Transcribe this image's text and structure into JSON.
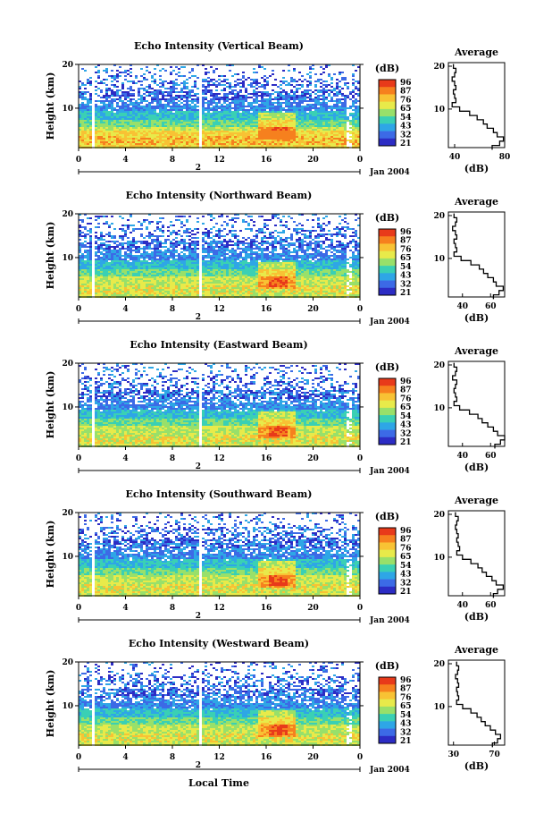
{
  "figure": {
    "bottom_xlabel": "Local Time",
    "colorbar_unit": "(dB)",
    "colorbar_ticks": [
      "96",
      "87",
      "76",
      "65",
      "54",
      "43",
      "32",
      "21"
    ],
    "colorbar_colors": [
      "#e83a1a",
      "#f6801e",
      "#f8c234",
      "#e8ea4a",
      "#98e06a",
      "#3ad0b4",
      "#2ea6e6",
      "#3c6ae6",
      "#2c2cc4"
    ],
    "height_label": "Height (km)",
    "height_ticks": [
      "20",
      "10"
    ],
    "time_ticks": [
      "0",
      "4",
      "8",
      "12",
      "16",
      "20",
      "0"
    ],
    "day_marker": "2",
    "date_label": "Jan 2004",
    "avg_title": "Average",
    "avg_xlabel": "(dB)"
  },
  "chart_data": [
    {
      "type": "heatmap",
      "title": "Echo Intensity (Vertical Beam)",
      "ylabel": "Height (km)",
      "ylim": [
        1,
        20
      ],
      "xlim": [
        0,
        24
      ],
      "time_ticks": [
        "0",
        "4",
        "8",
        "12",
        "16",
        "20",
        "0"
      ],
      "colorbar": {
        "unit": "(dB)",
        "ticks": [
          96,
          87,
          76,
          65,
          54,
          43,
          32,
          21
        ]
      },
      "average_profile": {
        "title": "Average",
        "xlabel": "(dB)",
        "xlim": [
          35,
          80
        ],
        "xticks": [
          "40",
          "80"
        ],
        "yticks": [
          "20",
          "10"
        ],
        "height": [
          1,
          2,
          3,
          4,
          5,
          6,
          7,
          8,
          9,
          10,
          11,
          12,
          13,
          14,
          15,
          16,
          17,
          18,
          19,
          20
        ],
        "db": [
          70,
          76,
          79,
          74,
          71,
          66,
          63,
          58,
          52,
          44,
          38,
          41,
          40,
          39,
          41,
          40,
          38,
          40,
          41,
          39
        ]
      }
    },
    {
      "type": "heatmap",
      "title": "Echo Intensity (Northward Beam)",
      "ylabel": "Height (km)",
      "ylim": [
        1,
        20
      ],
      "xlim": [
        0,
        24
      ],
      "time_ticks": [
        "0",
        "4",
        "8",
        "12",
        "16",
        "20",
        "0"
      ],
      "colorbar": {
        "unit": "(dB)",
        "ticks": [
          96,
          87,
          76,
          65,
          54,
          43,
          32,
          21
        ]
      },
      "average_profile": {
        "title": "Average",
        "xlabel": "(dB)",
        "xlim": [
          30,
          70
        ],
        "xticks": [
          "40",
          "60"
        ],
        "yticks": [
          "20",
          "10"
        ],
        "height": [
          1,
          2,
          3,
          4,
          5,
          6,
          7,
          8,
          9,
          10,
          11,
          12,
          13,
          14,
          15,
          16,
          17,
          18,
          19,
          20
        ],
        "db": [
          62,
          66,
          69,
          64,
          62,
          58,
          55,
          52,
          46,
          39,
          34,
          36,
          35,
          34,
          36,
          35,
          33,
          35,
          36,
          34
        ]
      }
    },
    {
      "type": "heatmap",
      "title": "Echo Intensity (Eastward Beam)",
      "ylabel": "Height (km)",
      "ylim": [
        1,
        20
      ],
      "xlim": [
        0,
        24
      ],
      "time_ticks": [
        "0",
        "4",
        "8",
        "12",
        "16",
        "20",
        "0"
      ],
      "colorbar": {
        "unit": "(dB)",
        "ticks": [
          96,
          87,
          76,
          65,
          54,
          43,
          32,
          21
        ]
      },
      "average_profile": {
        "title": "Average",
        "xlabel": "(dB)",
        "xlim": [
          30,
          70
        ],
        "xticks": [
          "40",
          "60"
        ],
        "yticks": [
          "20",
          "10"
        ],
        "height": [
          1,
          2,
          3,
          4,
          5,
          6,
          7,
          8,
          9,
          10,
          11,
          12,
          13,
          14,
          15,
          16,
          17,
          18,
          19,
          20
        ],
        "db": [
          63,
          67,
          70,
          65,
          62,
          58,
          54,
          51,
          45,
          38,
          34,
          36,
          35,
          34,
          35,
          36,
          33,
          35,
          36,
          34
        ]
      }
    },
    {
      "type": "heatmap",
      "title": "Echo Intensity (Southward Beam)",
      "ylabel": "Height (km)",
      "ylim": [
        1,
        20
      ],
      "xlim": [
        0,
        24
      ],
      "time_ticks": [
        "0",
        "4",
        "8",
        "12",
        "16",
        "20",
        "0"
      ],
      "colorbar": {
        "unit": "(dB)",
        "ticks": [
          96,
          87,
          76,
          65,
          54,
          43,
          32,
          21
        ]
      },
      "average_profile": {
        "title": "Average",
        "xlabel": "(dB)",
        "xlim": [
          30,
          70
        ],
        "xticks": [
          "40",
          "60"
        ],
        "yticks": [
          "20",
          "10"
        ],
        "height": [
          1,
          2,
          3,
          4,
          5,
          6,
          7,
          8,
          9,
          10,
          11,
          12,
          13,
          14,
          15,
          16,
          17,
          18,
          19,
          20
        ],
        "db": [
          62,
          65,
          69,
          64,
          61,
          57,
          54,
          51,
          46,
          40,
          36,
          38,
          37,
          36,
          37,
          36,
          35,
          36,
          37,
          35
        ]
      }
    },
    {
      "type": "heatmap",
      "title": "Echo Intensity (Westward Beam)",
      "ylabel": "Height (km)",
      "ylim": [
        1,
        20
      ],
      "xlim": [
        0,
        24
      ],
      "time_ticks": [
        "0",
        "4",
        "8",
        "12",
        "16",
        "20",
        "0"
      ],
      "colorbar": {
        "unit": "(dB)",
        "ticks": [
          96,
          87,
          76,
          65,
          54,
          43,
          32,
          21
        ]
      },
      "average_profile": {
        "title": "Average",
        "xlabel": "(dB)",
        "xlim": [
          25,
          80
        ],
        "xticks": [
          "30",
          "70"
        ],
        "yticks": [
          "20",
          "10"
        ],
        "height": [
          1,
          2,
          3,
          4,
          5,
          6,
          7,
          8,
          9,
          10,
          11,
          12,
          13,
          14,
          15,
          16,
          17,
          18,
          19,
          20
        ],
        "db": [
          68,
          73,
          76,
          71,
          66,
          61,
          57,
          53,
          47,
          39,
          33,
          35,
          34,
          33,
          35,
          34,
          32,
          34,
          35,
          33
        ]
      }
    }
  ]
}
